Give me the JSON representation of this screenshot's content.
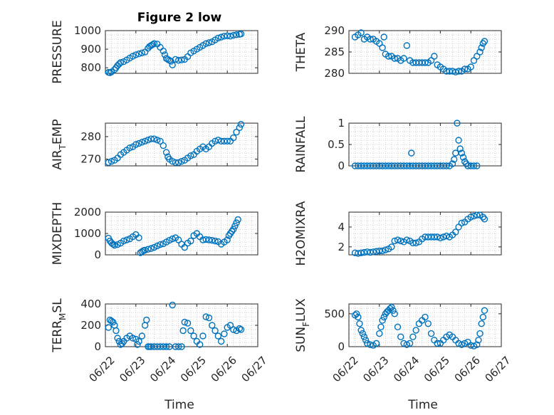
{
  "figure": {
    "title": "Figure 2 low",
    "xlabel": "Time",
    "accent_color": "#0072BD",
    "grid": "minor-dotted"
  },
  "chart_data": [
    {
      "type": "scatter",
      "panel": "pressure",
      "title": "Figure 2 low",
      "ylabel": "PRESSURE",
      "ylabel_main": "PRESSURE",
      "ylabel_sub": "",
      "ylabel_tail": "",
      "xlim": [
        0,
        5
      ],
      "ylim": [
        770,
        1000
      ],
      "yticks": [
        800,
        900,
        1000
      ],
      "ytick_labels": [
        "800",
        "900",
        "1000"
      ],
      "show_xticks": false,
      "x": [
        0.1,
        0.15,
        0.2,
        0.3,
        0.35,
        0.4,
        0.45,
        0.5,
        0.6,
        0.7,
        0.8,
        0.9,
        1.0,
        1.1,
        1.2,
        1.3,
        1.4,
        1.45,
        1.5,
        1.55,
        1.6,
        1.7,
        1.8,
        1.9,
        1.95,
        2.0,
        2.05,
        2.1,
        2.15,
        2.2,
        2.3,
        2.4,
        2.5,
        2.6,
        2.7,
        2.8,
        2.9,
        3.0,
        3.1,
        3.2,
        3.3,
        3.4,
        3.5,
        3.6,
        3.7,
        3.8,
        3.9,
        4.0,
        4.1,
        4.2,
        4.3,
        4.4,
        4.45
      ],
      "y": [
        775,
        773,
        778,
        790,
        800,
        812,
        820,
        828,
        833,
        842,
        852,
        862,
        870,
        875,
        880,
        885,
        905,
        915,
        920,
        925,
        930,
        928,
        910,
        890,
        870,
        850,
        845,
        840,
        835,
        815,
        845,
        840,
        842,
        845,
        860,
        880,
        890,
        900,
        910,
        920,
        930,
        935,
        940,
        950,
        960,
        965,
        970,
        972,
        970,
        975,
        978,
        980,
        982
      ]
    },
    {
      "type": "scatter",
      "panel": "theta",
      "ylabel": "THETA",
      "ylabel_main": "THETA",
      "ylabel_sub": "",
      "ylabel_tail": "",
      "xlim": [
        0,
        5
      ],
      "ylim": [
        280,
        290
      ],
      "yticks": [
        280,
        285,
        290
      ],
      "ytick_labels": [
        "280",
        "285",
        "290"
      ],
      "show_xticks": false,
      "x": [
        0.2,
        0.3,
        0.4,
        0.5,
        0.6,
        0.7,
        0.8,
        0.9,
        1.0,
        1.1,
        1.15,
        1.2,
        1.3,
        1.4,
        1.5,
        1.6,
        1.7,
        1.8,
        1.9,
        2.0,
        2.1,
        2.2,
        2.3,
        2.4,
        2.5,
        2.6,
        2.7,
        2.8,
        2.9,
        3.0,
        3.1,
        3.2,
        3.3,
        3.4,
        3.5,
        3.6,
        3.7,
        3.8,
        3.9,
        4.0,
        4.1,
        4.2,
        4.3,
        4.35,
        4.4,
        4.45
      ],
      "y": [
        288.5,
        289,
        289.5,
        288,
        288.5,
        288,
        288,
        287.5,
        287,
        286,
        288.5,
        284.5,
        284,
        284,
        283.5,
        283.5,
        283,
        283.5,
        286.5,
        283,
        282.5,
        282.5,
        282.5,
        282.5,
        282.5,
        282.5,
        283,
        284,
        282,
        281.5,
        281,
        280.5,
        280.5,
        280.5,
        280.3,
        280.5,
        280.5,
        281,
        281,
        281.5,
        283,
        284,
        285,
        286,
        287,
        287.5
      ]
    },
    {
      "type": "scatter",
      "panel": "air_temp",
      "ylabel": "AIR_TEMP",
      "ylabel_main": "AIR",
      "ylabel_sub": "T",
      "ylabel_tail": "EMP",
      "xlim": [
        0,
        5
      ],
      "ylim": [
        267,
        286
      ],
      "yticks": [
        270,
        280
      ],
      "ytick_labels": [
        "270",
        "280"
      ],
      "show_xticks": false,
      "x": [
        0.1,
        0.2,
        0.3,
        0.4,
        0.5,
        0.6,
        0.7,
        0.8,
        0.9,
        1.0,
        1.1,
        1.2,
        1.3,
        1.4,
        1.5,
        1.6,
        1.7,
        1.8,
        1.9,
        2.0,
        2.05,
        2.1,
        2.2,
        2.3,
        2.4,
        2.5,
        2.6,
        2.7,
        2.8,
        2.9,
        3.0,
        3.1,
        3.2,
        3.3,
        3.4,
        3.5,
        3.6,
        3.7,
        3.8,
        3.9,
        4.0,
        4.1,
        4.2,
        4.3,
        4.4,
        4.45
      ],
      "y": [
        268.5,
        269,
        269.5,
        270.5,
        272,
        273,
        274,
        275,
        275.5,
        276.5,
        277,
        277.5,
        278,
        278.5,
        279,
        279,
        278.5,
        278,
        276,
        273,
        271,
        270,
        269,
        268.5,
        268.5,
        269,
        269.5,
        270.5,
        271.5,
        272,
        273.5,
        274.5,
        275.5,
        274.5,
        275.5,
        277,
        278,
        278.5,
        278,
        278,
        278,
        278,
        279.5,
        282,
        284,
        285.5
      ]
    },
    {
      "type": "scatter",
      "panel": "rainfall",
      "ylabel": "RAINFALL",
      "ylabel_main": "RAINFALL",
      "ylabel_sub": "",
      "ylabel_tail": "",
      "xlim": [
        0,
        5
      ],
      "ylim": [
        0,
        1
      ],
      "yticks": [
        0,
        0.5,
        1
      ],
      "ytick_labels": [
        "0",
        "0.5",
        "1"
      ],
      "show_xticks": false,
      "x": [
        0.2,
        0.3,
        0.4,
        0.5,
        0.6,
        0.7,
        0.8,
        0.9,
        1.0,
        1.1,
        1.2,
        1.3,
        1.4,
        1.5,
        1.6,
        1.7,
        1.8,
        1.9,
        2.0,
        2.05,
        2.1,
        2.2,
        2.3,
        2.4,
        2.5,
        2.6,
        2.7,
        2.8,
        2.9,
        3.0,
        3.1,
        3.2,
        3.3,
        3.4,
        3.45,
        3.5,
        3.55,
        3.6,
        3.65,
        3.7,
        3.75,
        3.8,
        3.85,
        3.9,
        4.0,
        4.1,
        4.2
      ],
      "y": [
        0,
        0,
        0,
        0,
        0,
        0,
        0,
        0,
        0,
        0,
        0,
        0,
        0,
        0,
        0,
        0,
        0,
        0,
        0,
        0.3,
        0,
        0,
        0,
        0,
        0,
        0,
        0,
        0,
        0,
        0,
        0,
        0,
        0,
        0.05,
        0.15,
        0.3,
        1.0,
        0.6,
        0.4,
        0.3,
        0.2,
        0.1,
        0.05,
        0,
        0,
        0,
        0
      ]
    },
    {
      "type": "scatter",
      "panel": "mixdepth",
      "ylabel": "MIXDEPTH",
      "ylabel_main": "MIXDEPTH",
      "ylabel_sub": "",
      "ylabel_tail": "",
      "xlim": [
        0,
        5
      ],
      "ylim": [
        0,
        2000
      ],
      "yticks": [
        0,
        1000,
        2000
      ],
      "ytick_labels": [
        "0",
        "1000",
        "2000"
      ],
      "show_xticks": false,
      "x": [
        0.1,
        0.15,
        0.2,
        0.25,
        0.3,
        0.4,
        0.5,
        0.6,
        0.7,
        0.8,
        0.9,
        1.0,
        1.1,
        1.15,
        1.2,
        1.25,
        1.3,
        1.4,
        1.5,
        1.6,
        1.7,
        1.8,
        1.9,
        2.0,
        2.1,
        2.2,
        2.3,
        2.4,
        2.5,
        2.6,
        2.7,
        2.8,
        2.9,
        3.0,
        3.1,
        3.2,
        3.3,
        3.4,
        3.5,
        3.6,
        3.7,
        3.8,
        3.9,
        4.0,
        4.05,
        4.1,
        4.15,
        4.2,
        4.25,
        4.3,
        4.35
      ],
      "y": [
        780,
        650,
        560,
        500,
        450,
        480,
        550,
        650,
        700,
        750,
        850,
        950,
        800,
        100,
        150,
        200,
        220,
        260,
        300,
        350,
        420,
        480,
        520,
        600,
        680,
        750,
        800,
        700,
        500,
        350,
        550,
        650,
        900,
        1000,
        850,
        700,
        720,
        700,
        680,
        650,
        620,
        500,
        600,
        700,
        900,
        1000,
        1100,
        1200,
        1350,
        1500,
        1650
      ]
    },
    {
      "type": "scatter",
      "panel": "h2omixra",
      "ylabel": "H2OMIXRA",
      "ylabel_main": "H2OMIXRA",
      "ylabel_sub": "",
      "ylabel_tail": "",
      "xlim": [
        0,
        5
      ],
      "ylim": [
        1.2,
        5.5
      ],
      "yticks": [
        2,
        4
      ],
      "ytick_labels": [
        "2",
        "4"
      ],
      "show_xticks": false,
      "x": [
        0.2,
        0.3,
        0.4,
        0.5,
        0.6,
        0.7,
        0.8,
        0.9,
        1.0,
        1.1,
        1.2,
        1.3,
        1.4,
        1.5,
        1.6,
        1.7,
        1.8,
        1.9,
        2.0,
        2.1,
        2.2,
        2.3,
        2.4,
        2.5,
        2.6,
        2.7,
        2.8,
        2.9,
        3.0,
        3.1,
        3.2,
        3.3,
        3.4,
        3.5,
        3.6,
        3.7,
        3.8,
        3.9,
        4.0,
        4.1,
        4.2,
        4.3,
        4.4,
        4.45
      ],
      "y": [
        1.4,
        1.35,
        1.4,
        1.45,
        1.5,
        1.45,
        1.5,
        1.55,
        1.6,
        1.6,
        1.7,
        1.8,
        2.0,
        2.6,
        2.7,
        2.6,
        2.5,
        2.7,
        2.6,
        2.4,
        2.4,
        2.5,
        2.8,
        3.0,
        3.0,
        3.0,
        3.0,
        3.0,
        2.9,
        3.0,
        3.1,
        3.0,
        3.2,
        3.5,
        4.0,
        4.4,
        4.5,
        4.8,
        5.0,
        5.1,
        5.2,
        5.2,
        5.0,
        4.8
      ]
    },
    {
      "type": "scatter",
      "panel": "terr_msl",
      "ylabel": "TERR_MSL",
      "ylabel_main": "TERR",
      "ylabel_sub": "M",
      "ylabel_tail": "SL",
      "xlim": [
        0,
        5
      ],
      "ylim": [
        0,
        400
      ],
      "yticks": [
        0,
        200,
        400
      ],
      "ytick_labels": [
        "0",
        "200",
        "400"
      ],
      "show_xticks": true,
      "xticks": [
        0,
        1,
        2,
        3,
        4,
        5
      ],
      "xtick_labels": [
        "06/22",
        "06/23",
        "06/24",
        "06/25",
        "06/26",
        "06/27"
      ],
      "x": [
        0.1,
        0.15,
        0.2,
        0.25,
        0.3,
        0.35,
        0.4,
        0.45,
        0.5,
        0.55,
        0.6,
        0.7,
        0.8,
        0.9,
        1.0,
        1.05,
        1.1,
        1.2,
        1.3,
        1.35,
        1.4,
        1.45,
        1.5,
        1.6,
        1.7,
        1.8,
        1.9,
        2.0,
        2.1,
        2.2,
        2.3,
        2.4,
        2.5,
        2.55,
        2.6,
        2.7,
        2.8,
        2.9,
        3.0,
        3.1,
        3.2,
        3.3,
        3.4,
        3.5,
        3.6,
        3.7,
        3.8,
        3.9,
        4.0,
        4.1,
        4.2,
        4.3,
        4.4,
        4.45
      ],
      "y": [
        180,
        250,
        240,
        230,
        200,
        150,
        80,
        50,
        20,
        30,
        50,
        80,
        100,
        80,
        70,
        20,
        50,
        100,
        200,
        250,
        0,
        0,
        0,
        0,
        0,
        0,
        0,
        0,
        0,
        390,
        0,
        0,
        0,
        150,
        230,
        220,
        150,
        100,
        50,
        20,
        100,
        280,
        270,
        200,
        150,
        100,
        50,
        120,
        180,
        200,
        160,
        150,
        170,
        160
      ]
    },
    {
      "type": "scatter",
      "panel": "sun_flux",
      "ylabel": "SUN_FLUX",
      "ylabel_main": "SUN",
      "ylabel_sub": "F",
      "ylabel_tail": "LUX",
      "xlim": [
        0,
        5
      ],
      "ylim": [
        0,
        650
      ],
      "yticks": [
        0,
        500
      ],
      "ytick_labels": [
        "0",
        "500"
      ],
      "show_xticks": true,
      "xticks": [
        0,
        1,
        2,
        3,
        4,
        5
      ],
      "xtick_labels": [
        "06/22",
        "06/23",
        "06/24",
        "06/25",
        "06/26",
        "06/27"
      ],
      "x": [
        0.2,
        0.25,
        0.3,
        0.35,
        0.4,
        0.45,
        0.5,
        0.55,
        0.6,
        0.7,
        0.8,
        0.9,
        1.0,
        1.05,
        1.1,
        1.15,
        1.2,
        1.25,
        1.3,
        1.35,
        1.4,
        1.45,
        1.5,
        1.6,
        1.7,
        1.8,
        1.9,
        2.0,
        2.1,
        2.2,
        2.3,
        2.4,
        2.5,
        2.6,
        2.7,
        2.8,
        2.9,
        3.0,
        3.1,
        3.2,
        3.3,
        3.4,
        3.5,
        3.6,
        3.7,
        3.8,
        3.9,
        4.0,
        4.1,
        4.2,
        4.25,
        4.3,
        4.35,
        4.4,
        4.45
      ],
      "y": [
        480,
        500,
        450,
        350,
        250,
        200,
        150,
        100,
        50,
        30,
        20,
        50,
        200,
        300,
        400,
        450,
        500,
        530,
        550,
        580,
        600,
        550,
        500,
        300,
        150,
        50,
        30,
        50,
        150,
        250,
        350,
        400,
        450,
        350,
        200,
        100,
        50,
        50,
        100,
        150,
        180,
        150,
        100,
        50,
        30,
        50,
        70,
        20,
        10,
        30,
        100,
        200,
        350,
        450,
        550
      ]
    }
  ]
}
